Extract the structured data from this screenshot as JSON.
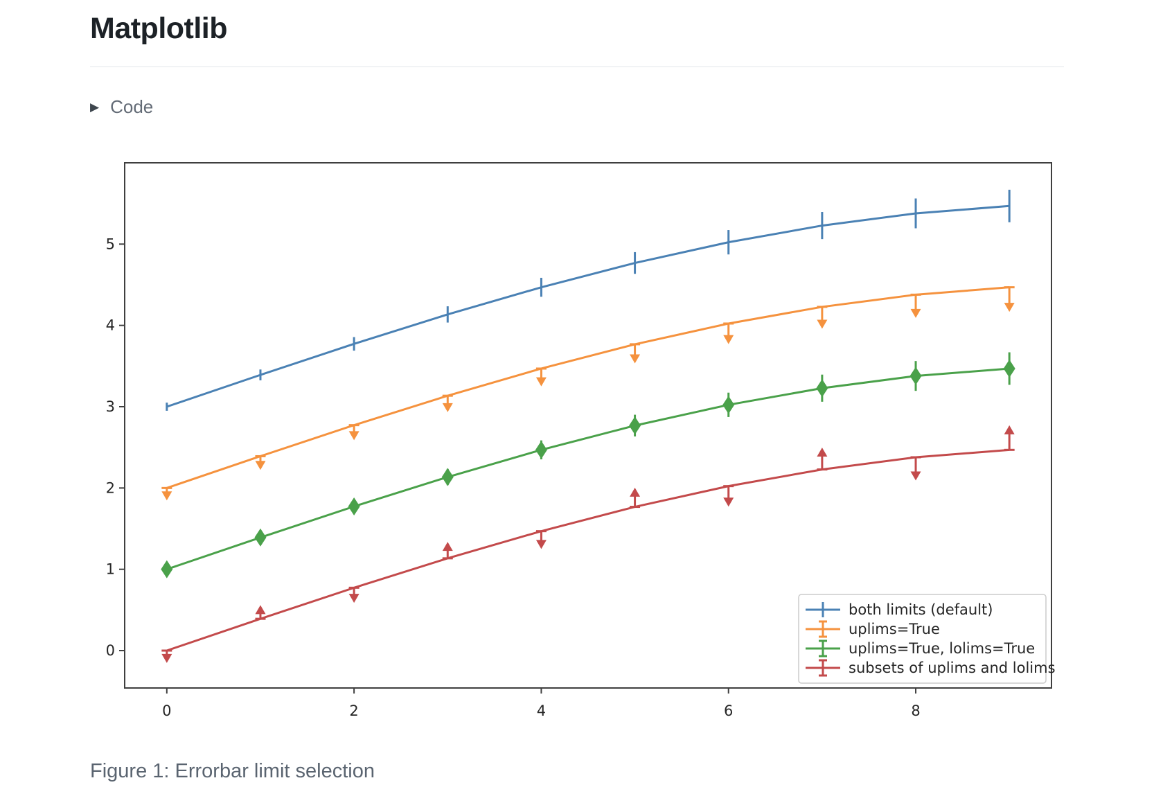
{
  "page": {
    "title": "Matplotlib",
    "code_toggle_label": "Code",
    "caption": "Figure 1: Errorbar limit selection"
  },
  "icons": {
    "disclosure_triangle": "▶"
  },
  "chart_data": {
    "type": "line",
    "title": "",
    "xlabel": "",
    "ylabel": "",
    "x": [
      0,
      1,
      2,
      3,
      4,
      5,
      6,
      7,
      8,
      9
    ],
    "series": [
      {
        "name": "both limits (default)",
        "color": "#4A81B4",
        "values": [
          3.0,
          3.391,
          3.773,
          4.135,
          4.469,
          4.768,
          5.023,
          5.228,
          5.378,
          5.469
        ],
        "yerr": [
          0.05,
          0.0667,
          0.0833,
          0.1,
          0.1167,
          0.1333,
          0.15,
          0.1667,
          0.1833,
          0.2
        ],
        "uplims": false,
        "lolims": false
      },
      {
        "name": "uplims=True",
        "color": "#F5923E",
        "values": [
          2.0,
          2.391,
          2.773,
          3.135,
          3.469,
          3.768,
          4.023,
          4.228,
          4.378,
          4.469
        ],
        "yerr": [
          0.05,
          0.0667,
          0.0833,
          0.1,
          0.1167,
          0.1333,
          0.15,
          0.1667,
          0.1833,
          0.2
        ],
        "uplims": true,
        "lolims": false
      },
      {
        "name": "uplims=True, lolims=True",
        "color": "#4AA14A",
        "values": [
          1.0,
          1.391,
          1.773,
          2.135,
          2.469,
          2.768,
          3.023,
          3.228,
          3.378,
          3.469
        ],
        "yerr": [
          0.05,
          0.0667,
          0.0833,
          0.1,
          0.1167,
          0.1333,
          0.15,
          0.1667,
          0.1833,
          0.2
        ],
        "uplims": true,
        "lolims": true
      },
      {
        "name": "subsets of uplims and lolims",
        "color": "#C34A4B",
        "values": [
          0.0,
          0.391,
          0.773,
          1.135,
          1.469,
          1.768,
          2.023,
          2.228,
          2.378,
          2.469
        ],
        "yerr": [
          0.05,
          0.0667,
          0.0833,
          0.1,
          0.1167,
          0.1333,
          0.15,
          0.1667,
          0.1833,
          0.2
        ],
        "uplims": [
          true,
          false,
          true,
          false,
          true,
          false,
          true,
          false,
          true,
          false
        ],
        "lolims": [
          false,
          true,
          false,
          true,
          false,
          true,
          false,
          true,
          false,
          true
        ]
      }
    ],
    "xticks": [
      0,
      2,
      4,
      6,
      8
    ],
    "yticks": [
      0,
      1,
      2,
      3,
      4,
      5
    ],
    "xlim": [
      -0.45,
      9.45
    ],
    "ylim": [
      -0.46,
      6.0
    ],
    "grid": false,
    "legend_position": "lower right",
    "axis_color": "#3F3F3F",
    "tick_label_color": "#262626",
    "legend_border_color": "#CCCCCC"
  }
}
